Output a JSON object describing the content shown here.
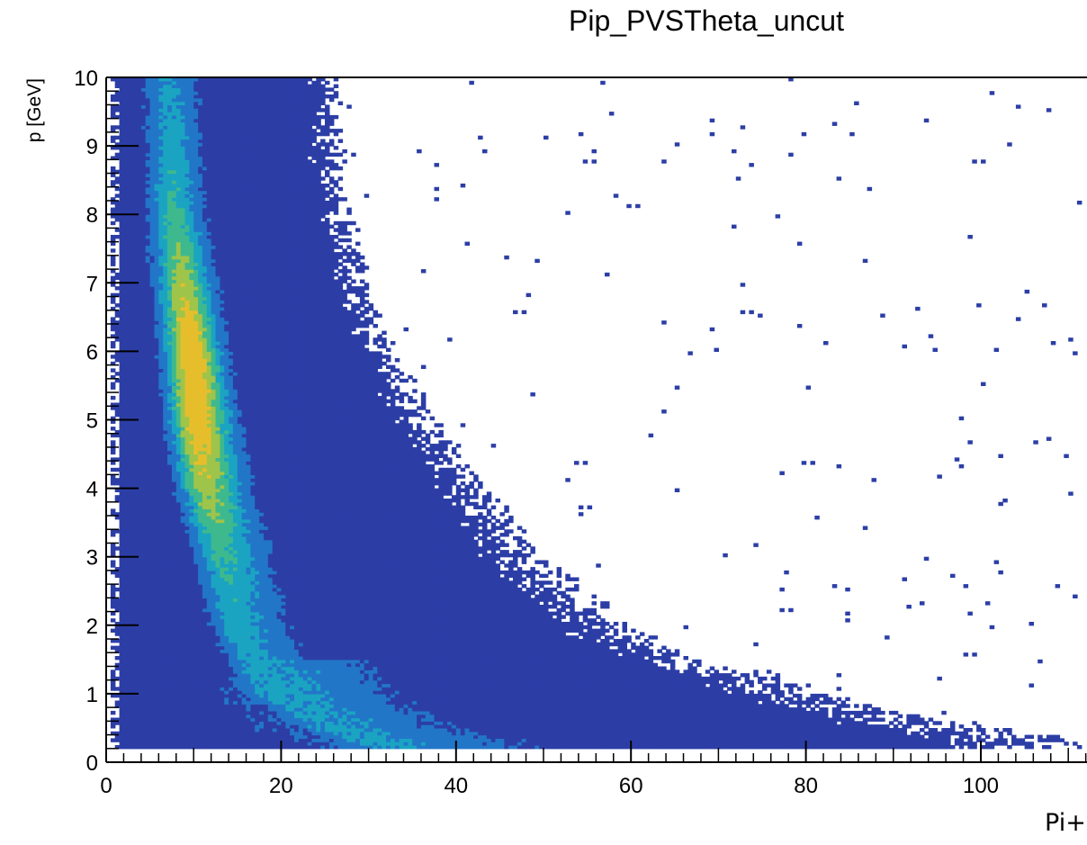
{
  "chart_data": {
    "type": "heatmap",
    "title": "Pip_PVSTheta_uncut",
    "xlabel": "Pi+",
    "ylabel": "p [GeV]",
    "xlim": [
      0,
      112
    ],
    "ylim": [
      0,
      10
    ],
    "x_ticks": [
      "0",
      "20",
      "40",
      "60",
      "80",
      "100"
    ],
    "y_ticks": [
      "0",
      "1",
      "2",
      "3",
      "4",
      "5",
      "6",
      "7",
      "8",
      "9",
      "10"
    ],
    "colormap": [
      "#2c3ea6",
      "#2276c8",
      "#1aa4c2",
      "#3eb98e",
      "#9fc44a",
      "#e6be2c",
      "#f5d01e"
    ],
    "band_ridge": [
      {
        "p": 10.0,
        "theta": 7.0
      },
      {
        "p": 8.0,
        "theta": 7.5
      },
      {
        "p": 6.0,
        "theta": 9.5
      },
      {
        "p": 5.0,
        "theta": 10.0
      },
      {
        "p": 4.0,
        "theta": 11.0
      },
      {
        "p": 3.0,
        "theta": 13.0
      },
      {
        "p": 2.0,
        "theta": 14.5
      },
      {
        "p": 1.0,
        "theta": 18.0
      },
      {
        "p": 0.5,
        "theta": 24.0
      },
      {
        "p": 0.25,
        "theta": 30.0
      }
    ],
    "outer_edge": [
      {
        "p": 10.0,
        "theta": 27
      },
      {
        "p": 9.0,
        "theta": 27
      },
      {
        "p": 8.0,
        "theta": 28
      },
      {
        "p": 7.0,
        "theta": 30
      },
      {
        "p": 6.0,
        "theta": 33
      },
      {
        "p": 5.0,
        "theta": 38
      },
      {
        "p": 4.0,
        "theta": 44
      },
      {
        "p": 3.0,
        "theta": 50
      },
      {
        "p": 2.0,
        "theta": 60
      },
      {
        "p": 1.5,
        "theta": 68
      },
      {
        "p": 1.25,
        "theta": 78
      },
      {
        "p": 1.0,
        "theta": 82
      },
      {
        "p": 0.5,
        "theta": 100
      },
      {
        "p": 0.3,
        "theta": 112
      }
    ],
    "peak": {
      "p": 5.5,
      "theta": 10.0
    }
  }
}
